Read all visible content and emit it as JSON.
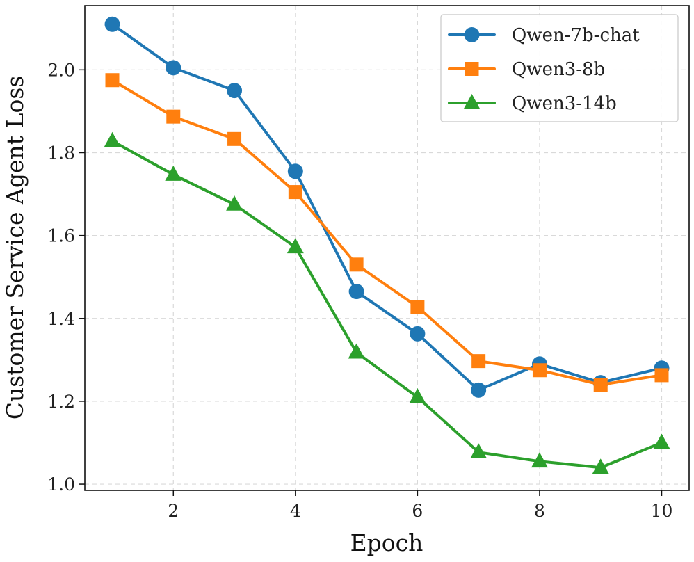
{
  "chart_data": {
    "type": "line",
    "title": "",
    "xlabel": "Epoch",
    "ylabel": "Customer Service Agent Loss",
    "xlim": [
      0.55,
      10.45
    ],
    "ylim": [
      0.985,
      2.155
    ],
    "x_ticks": [
      2,
      4,
      6,
      8,
      10
    ],
    "x_tick_labels": [
      "2",
      "4",
      "6",
      "8",
      "10"
    ],
    "y_ticks": [
      1.0,
      1.2,
      1.4,
      1.6,
      1.8,
      2.0
    ],
    "y_tick_labels": [
      "1.0",
      "1.2",
      "1.4",
      "1.6",
      "1.8",
      "2.0"
    ],
    "grid": true,
    "legend_position": "top-right",
    "x": [
      1,
      2,
      3,
      4,
      5,
      6,
      7,
      8,
      9,
      10
    ],
    "series": [
      {
        "name": "Qwen-7b-chat",
        "marker": "circle",
        "color": "#1f77b4",
        "values": [
          2.11,
          2.005,
          1.95,
          1.755,
          1.465,
          1.363,
          1.227,
          1.29,
          1.245,
          1.28
        ]
      },
      {
        "name": "Qwen3-8b",
        "marker": "square",
        "color": "#ff7f0e",
        "values": [
          1.975,
          1.887,
          1.833,
          1.705,
          1.53,
          1.428,
          1.297,
          1.275,
          1.24,
          1.263
        ]
      },
      {
        "name": "Qwen3-14b",
        "marker": "triangle",
        "color": "#2ca02c",
        "values": [
          1.828,
          1.747,
          1.675,
          1.572,
          1.318,
          1.21,
          1.077,
          1.055,
          1.04,
          1.1
        ]
      }
    ]
  }
}
